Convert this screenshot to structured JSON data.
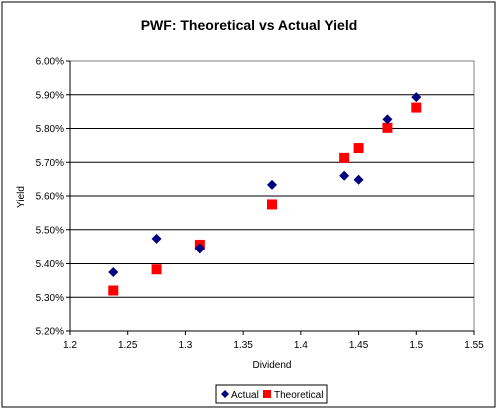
{
  "chart_data": {
    "type": "scatter",
    "title": "PWF: Theoretical vs Actual Yield",
    "xlabel": "Dividend",
    "ylabel": "Yield",
    "xlim": [
      1.2,
      1.55
    ],
    "ylim": [
      0.052,
      0.06
    ],
    "x_ticks": [
      "1.2",
      "1.25",
      "1.3",
      "1.35",
      "1.4",
      "1.45",
      "1.5",
      "1.55"
    ],
    "x_tick_values": [
      1.2,
      1.25,
      1.3,
      1.35,
      1.4,
      1.45,
      1.5,
      1.55
    ],
    "y_ticks": [
      "5.20%",
      "5.30%",
      "5.40%",
      "5.50%",
      "5.60%",
      "5.70%",
      "5.80%",
      "5.90%",
      "6.00%"
    ],
    "y_tick_values": [
      0.052,
      0.053,
      0.054,
      0.055,
      0.056,
      0.057,
      0.058,
      0.059,
      0.06
    ],
    "grid": "horizontal",
    "legend_position": "bottom",
    "series": [
      {
        "name": "Actual",
        "marker": "diamond",
        "color": "#000080",
        "points": [
          {
            "x": 1.2375,
            "y": 0.05375
          },
          {
            "x": 1.275,
            "y": 0.05473
          },
          {
            "x": 1.3125,
            "y": 0.05445
          },
          {
            "x": 1.375,
            "y": 0.05633
          },
          {
            "x": 1.4375,
            "y": 0.0566
          },
          {
            "x": 1.45,
            "y": 0.05648
          },
          {
            "x": 1.475,
            "y": 0.05827
          },
          {
            "x": 1.5,
            "y": 0.05893
          }
        ]
      },
      {
        "name": "Theoretical",
        "marker": "square",
        "color": "#ff0000",
        "points": [
          {
            "x": 1.2375,
            "y": 0.0532
          },
          {
            "x": 1.275,
            "y": 0.05383
          },
          {
            "x": 1.3125,
            "y": 0.05455
          },
          {
            "x": 1.375,
            "y": 0.05575
          },
          {
            "x": 1.4375,
            "y": 0.05713
          },
          {
            "x": 1.45,
            "y": 0.05742
          },
          {
            "x": 1.475,
            "y": 0.05802
          },
          {
            "x": 1.5,
            "y": 0.05862
          }
        ]
      }
    ]
  }
}
